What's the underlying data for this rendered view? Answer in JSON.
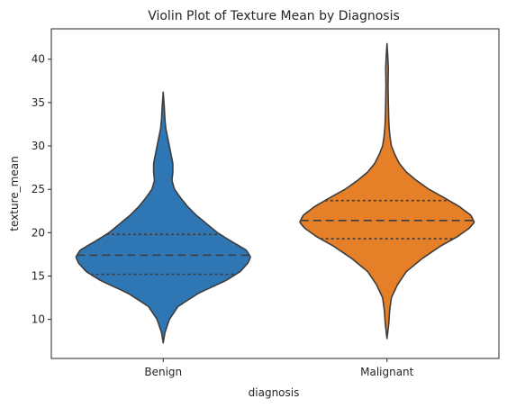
{
  "chart_data": {
    "type": "violin",
    "title": "Violin Plot of Texture Mean by Diagnosis",
    "xlabel": "diagnosis",
    "ylabel": "texture_mean",
    "categories": [
      "Benign",
      "Malignant"
    ],
    "ylim": [
      5.5,
      43.5
    ],
    "yticks": [
      10,
      15,
      20,
      25,
      30,
      35,
      40
    ],
    "inner": "quartile",
    "grid": false,
    "legend": "none",
    "series": [
      {
        "category": "Benign",
        "color": "#2f77b4",
        "min": 7.3,
        "max": 36.2,
        "q1": 15.2,
        "median": 17.4,
        "q3": 19.8,
        "density_profile": [
          [
            7.3,
            0.0
          ],
          [
            8.5,
            0.02
          ],
          [
            10.0,
            0.07
          ],
          [
            11.5,
            0.17
          ],
          [
            13.0,
            0.4
          ],
          [
            14.5,
            0.72
          ],
          [
            15.5,
            0.88
          ],
          [
            16.5,
            0.97
          ],
          [
            17.2,
            1.0
          ],
          [
            18.0,
            0.95
          ],
          [
            19.0,
            0.78
          ],
          [
            20.0,
            0.62
          ],
          [
            21.0,
            0.5
          ],
          [
            22.0,
            0.38
          ],
          [
            23.0,
            0.28
          ],
          [
            24.0,
            0.2
          ],
          [
            25.0,
            0.13
          ],
          [
            26.0,
            0.1
          ],
          [
            27.0,
            0.11
          ],
          [
            28.0,
            0.11
          ],
          [
            29.0,
            0.09
          ],
          [
            30.0,
            0.07
          ],
          [
            31.0,
            0.05
          ],
          [
            32.0,
            0.03
          ],
          [
            33.0,
            0.02
          ],
          [
            34.5,
            0.012
          ],
          [
            36.2,
            0.0
          ]
        ]
      },
      {
        "category": "Malignant",
        "color": "#e57f28",
        "min": 7.8,
        "max": 41.8,
        "q1": 19.3,
        "median": 21.4,
        "q3": 23.7,
        "density_profile": [
          [
            7.8,
            0.0
          ],
          [
            9.5,
            0.02
          ],
          [
            11.0,
            0.03
          ],
          [
            12.5,
            0.05
          ],
          [
            14.0,
            0.12
          ],
          [
            15.5,
            0.22
          ],
          [
            17.0,
            0.4
          ],
          [
            18.5,
            0.62
          ],
          [
            19.5,
            0.8
          ],
          [
            20.5,
            0.94
          ],
          [
            21.2,
            1.0
          ],
          [
            22.0,
            0.96
          ],
          [
            23.0,
            0.83
          ],
          [
            24.0,
            0.66
          ],
          [
            25.0,
            0.48
          ],
          [
            26.0,
            0.34
          ],
          [
            27.0,
            0.22
          ],
          [
            28.0,
            0.14
          ],
          [
            29.0,
            0.09
          ],
          [
            30.0,
            0.05
          ],
          [
            31.0,
            0.035
          ],
          [
            32.0,
            0.025
          ],
          [
            33.0,
            0.02
          ],
          [
            35.0,
            0.015
          ],
          [
            37.0,
            0.012
          ],
          [
            39.0,
            0.015
          ],
          [
            40.5,
            0.008
          ],
          [
            41.8,
            0.0
          ]
        ]
      }
    ]
  }
}
